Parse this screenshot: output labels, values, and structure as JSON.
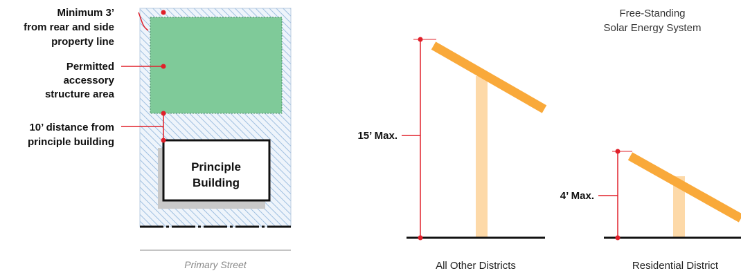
{
  "site_plan": {
    "callouts": [
      {
        "lines": [
          "Minimum 3’",
          "from rear and side",
          "property line"
        ]
      },
      {
        "lines": [
          "Permitted",
          "accessory",
          "structure area"
        ]
      },
      {
        "lines": [
          "10’ distance from",
          "principle building"
        ]
      }
    ],
    "building_lines": [
      "Principle",
      "Building"
    ],
    "street_label": "Primary Street"
  },
  "elevations": {
    "title_lines": [
      "Free-Standing",
      "Solar Energy System"
    ],
    "panels": [
      {
        "max_label": "15’ Max.",
        "caption": "All Other Districts"
      },
      {
        "max_label": "4’ Max.",
        "caption": "Residential District"
      }
    ]
  },
  "colors": {
    "callout_red": "#e0202a",
    "panel_orange": "#f9a93a",
    "post_tan": "#fdd9a8",
    "accessory_green": "#7fca99",
    "hatch_blue": "#9fbfe0"
  }
}
